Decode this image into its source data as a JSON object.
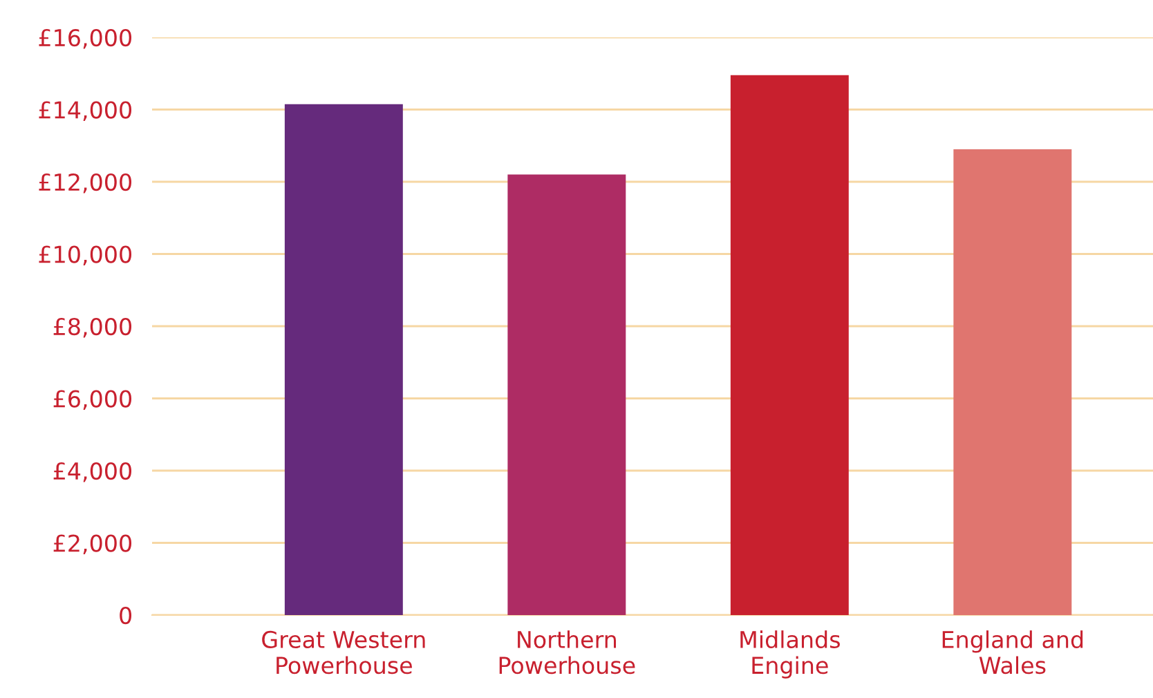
{
  "chart_data": {
    "type": "bar",
    "categories": [
      "Great Western\nPowerhouse",
      "Northern\nPowerhouse",
      "Midlands\nEngine",
      "England and\nWales"
    ],
    "values": [
      14150,
      12200,
      14950,
      12900
    ],
    "colors": [
      "#652a7c",
      "#ae2c64",
      "#c8202e",
      "#e0756f"
    ],
    "ylim": [
      0,
      16000
    ],
    "yticks": [
      0,
      {
        "value": 2000,
        "label": "£2,000"
      },
      {
        "value": 4000,
        "label": "£4,000"
      },
      {
        "value": 6000,
        "label": "£6,000"
      },
      {
        "value": 8000,
        "label": "£8,000"
      },
      {
        "value": 10000,
        "label": "£10,000"
      },
      {
        "value": 12000,
        "label": "£12,000"
      },
      {
        "value": 14000,
        "label": "£14,000"
      },
      {
        "value": 16000,
        "label": "£16,000"
      }
    ],
    "grid": "y"
  }
}
